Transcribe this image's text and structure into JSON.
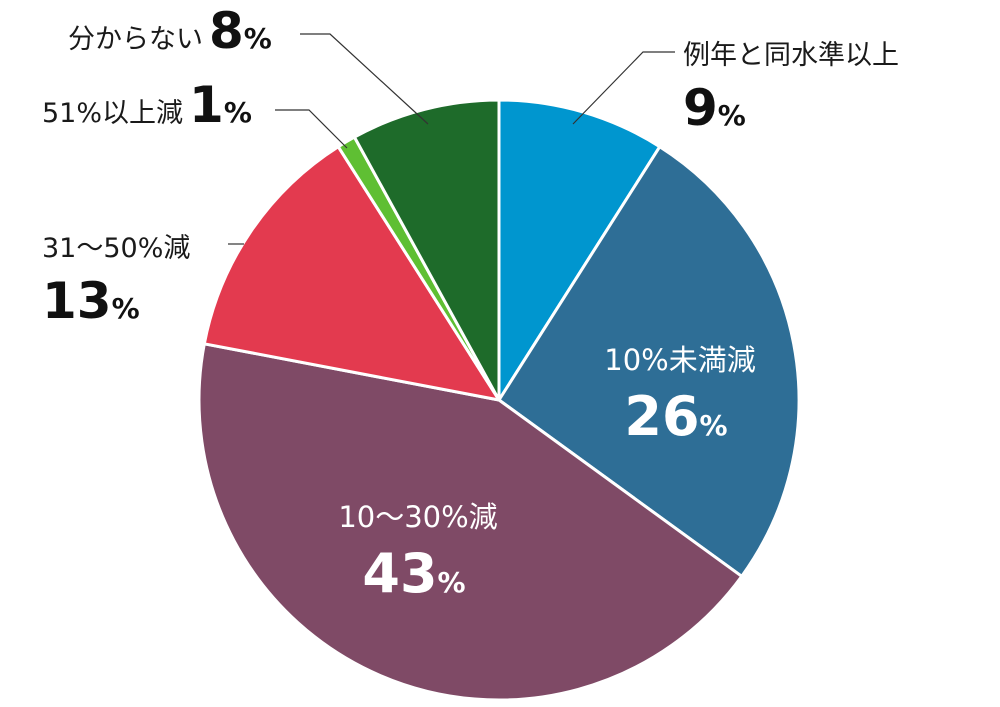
{
  "chart_data": {
    "type": "pie",
    "title": "",
    "slices": [
      {
        "label": "例年と同水準以上",
        "value": 9,
        "display": "9",
        "unit": "%",
        "color": "#0096cf"
      },
      {
        "label": "10%未満減",
        "value": 26,
        "display": "26",
        "unit": "%",
        "color": "#2e6e96"
      },
      {
        "label": "10～30%減",
        "value": 43,
        "display": "43",
        "unit": "%",
        "color": "#7f4a66"
      },
      {
        "label": "31～50%減",
        "value": 13,
        "display": "13",
        "unit": "%",
        "color": "#e33a4f"
      },
      {
        "label": "51%以上減",
        "value": 1,
        "display": "1",
        "unit": "%",
        "color": "#5fbf33"
      },
      {
        "label": "分からない",
        "value": 8,
        "display": "8",
        "unit": "%",
        "color": "#1e6b2a"
      }
    ]
  }
}
